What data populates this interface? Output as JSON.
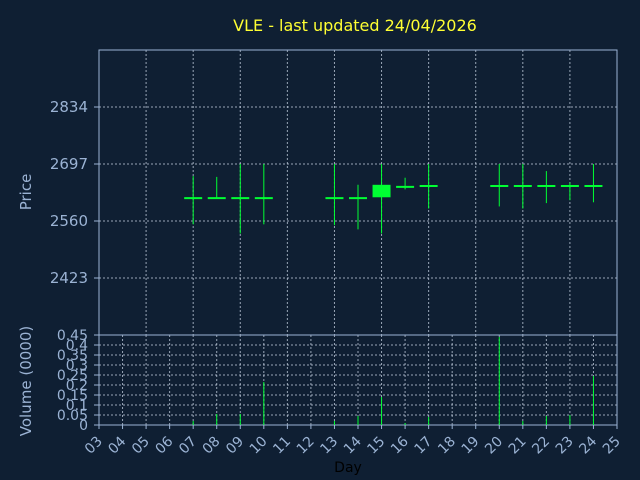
{
  "chart_data": {
    "type": "candlestick",
    "title": "VLE - last updated 24/04/2026",
    "xlabel": "Day",
    "price_panel": {
      "ylabel": "Price",
      "yticks": [
        2423,
        2560,
        2697,
        2834
      ],
      "ylim": [
        2286,
        2971
      ]
    },
    "volume_panel": {
      "ylabel": "Volume (0000)",
      "yticks": [
        "0",
        "0.05",
        "0.1",
        "0.15",
        "0.2",
        "0.25",
        "0.3",
        "0.35",
        "0.4",
        "0.45"
      ],
      "ylim": [
        0,
        0.45
      ]
    },
    "x_ticks": [
      "03",
      "04",
      "05",
      "06",
      "07",
      "08",
      "09",
      "10",
      "11",
      "12",
      "13",
      "14",
      "15",
      "16",
      "17",
      "18",
      "19",
      "20",
      "21",
      "22",
      "23",
      "24",
      "25"
    ],
    "xlim": [
      3,
      25
    ],
    "candles": [
      {
        "day": 7,
        "open": 2615,
        "close": 2615,
        "high": 2668,
        "low": 2552
      },
      {
        "day": 8,
        "open": 2615,
        "close": 2615,
        "high": 2666,
        "low": 2614
      },
      {
        "day": 9,
        "open": 2615,
        "close": 2615,
        "high": 2697,
        "low": 2530
      },
      {
        "day": 10,
        "open": 2615,
        "close": 2615,
        "high": 2697,
        "low": 2552
      },
      {
        "day": 13,
        "open": 2615,
        "close": 2615,
        "high": 2697,
        "low": 2550
      },
      {
        "day": 14,
        "open": 2615,
        "close": 2615,
        "high": 2647,
        "low": 2540
      },
      {
        "day": 15,
        "open": 2617,
        "close": 2647,
        "high": 2697,
        "low": 2530
      },
      {
        "day": 16,
        "open": 2642,
        "close": 2642,
        "high": 2664,
        "low": 2636
      },
      {
        "day": 17,
        "open": 2644,
        "close": 2644,
        "high": 2697,
        "low": 2590
      },
      {
        "day": 20,
        "open": 2644,
        "close": 2644,
        "high": 2697,
        "low": 2595
      },
      {
        "day": 21,
        "open": 2644,
        "close": 2644,
        "high": 2697,
        "low": 2590
      },
      {
        "day": 22,
        "open": 2644,
        "close": 2644,
        "high": 2680,
        "low": 2603
      },
      {
        "day": 23,
        "open": 2644,
        "close": 2644,
        "high": 2652,
        "low": 2610
      },
      {
        "day": 24,
        "open": 2644,
        "close": 2644,
        "high": 2697,
        "low": 2605
      }
    ],
    "volumes": [
      {
        "day": 7,
        "value": 0.02
      },
      {
        "day": 8,
        "value": 0.055
      },
      {
        "day": 9,
        "value": 0.055
      },
      {
        "day": 10,
        "value": 0.215
      },
      {
        "day": 13,
        "value": 0.02
      },
      {
        "day": 14,
        "value": 0.045
      },
      {
        "day": 15,
        "value": 0.14
      },
      {
        "day": 16,
        "value": 0.01
      },
      {
        "day": 17,
        "value": 0.04
      },
      {
        "day": 20,
        "value": 0.44
      },
      {
        "day": 21,
        "value": 0.02
      },
      {
        "day": 22,
        "value": 0.045
      },
      {
        "day": 23,
        "value": 0.05
      },
      {
        "day": 24,
        "value": 0.245
      }
    ],
    "grid": true,
    "colors": {
      "background": "#0f1f33",
      "axis": "#9bb3d4",
      "grid": "#c8d4e4",
      "candle": "#00ff33",
      "title": "#ffff33"
    }
  }
}
